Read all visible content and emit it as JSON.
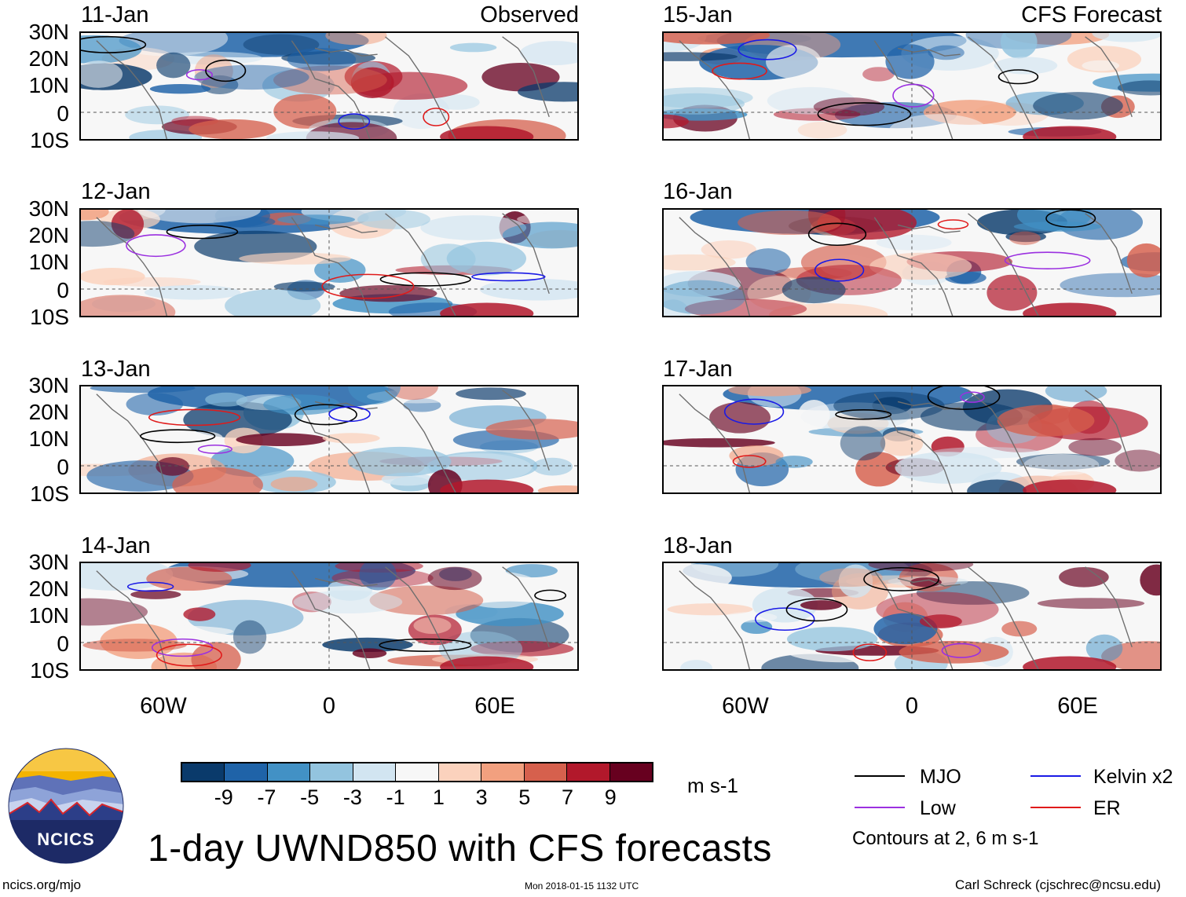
{
  "panels_left_header": "Observed",
  "panels_right_header": "CFS Forecast",
  "left_dates": [
    "11-Jan",
    "12-Jan",
    "13-Jan",
    "14-Jan"
  ],
  "right_dates": [
    "15-Jan",
    "16-Jan",
    "17-Jan",
    "18-Jan"
  ],
  "lat_labels": [
    "30N",
    "20N",
    "10N",
    "0",
    "10S"
  ],
  "lon_labels": [
    "60W",
    "0",
    "60E"
  ],
  "colorbar": {
    "colors": [
      "#0a3a6b",
      "#1f63a8",
      "#4291c5",
      "#93c4df",
      "#d2e5f1",
      "#f7f7f7",
      "#fbd2bd",
      "#f2a07f",
      "#d6604d",
      "#b2182b",
      "#67001f"
    ],
    "ticks": [
      "-9",
      "-7",
      "-5",
      "-3",
      "-1",
      "1",
      "3",
      "5",
      "7",
      "9"
    ],
    "units": "m s-1"
  },
  "legend": {
    "items": [
      {
        "label": "MJO",
        "color": "#000000"
      },
      {
        "label": "Kelvin x2",
        "color": "#1a1ae6"
      },
      {
        "label": "Low",
        "color": "#9b30e0"
      },
      {
        "label": "ER",
        "color": "#e01a1a"
      }
    ],
    "note": "Contours at 2, 6 m s-1"
  },
  "logo_text": "NCICS",
  "title": "1-day UWND850 with CFS forecasts",
  "footer": {
    "left": "ncics.org/mjo",
    "middle": "Mon 2018-01-15 1132 UTC",
    "right": "Carl Schreck (cjschrec@ncsu.edu)"
  }
}
